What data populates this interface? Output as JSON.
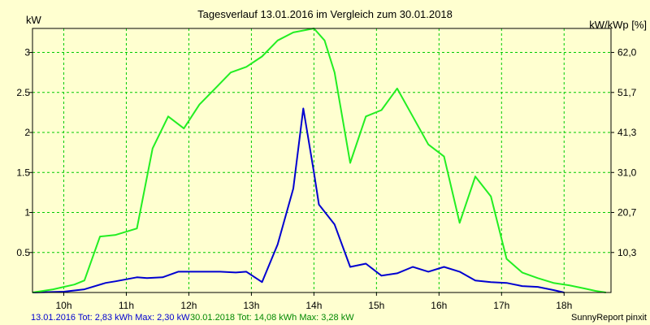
{
  "chart_data": {
    "type": "line",
    "title": "Tagesverlauf 13.01.2016 im Vergleich zum 30.01.2018",
    "ylabel_left": "kW",
    "ylabel_right": "kW/kWp [%]",
    "ylim": [
      0,
      3.3
    ],
    "y_right_ticks": [
      "10,3",
      "20,7",
      "31,0",
      "41,3",
      "51,7",
      "62,0"
    ],
    "y_right_tick_values": [
      0.5,
      1.0,
      1.5,
      2.0,
      2.5,
      3.0
    ],
    "y_ticks": [
      "0.5",
      "1",
      "1.5",
      "2",
      "2.5",
      "3"
    ],
    "y_tick_values": [
      0.5,
      1.0,
      1.5,
      2.0,
      2.5,
      3.0
    ],
    "xlim": [
      9.5,
      18.75
    ],
    "x_ticks": [
      "10h",
      "11h",
      "12h",
      "13h",
      "14h",
      "15h",
      "16h",
      "17h",
      "18h"
    ],
    "x_tick_values": [
      10,
      11,
      12,
      13,
      14,
      15,
      16,
      17,
      18
    ],
    "grid": true,
    "series": [
      {
        "name": "13.01.2016",
        "color": "#0000d0",
        "x": [
          9.5,
          10.0,
          10.33,
          10.67,
          10.83,
          11.17,
          11.33,
          11.58,
          11.83,
          12.0,
          12.17,
          12.5,
          12.75,
          12.92,
          13.17,
          13.42,
          13.67,
          13.83,
          14.0,
          14.08,
          14.33,
          14.58,
          14.83,
          15.08,
          15.33,
          15.58,
          15.83,
          16.08,
          16.33,
          16.58,
          16.83,
          17.08,
          17.33,
          17.58,
          17.83,
          18.0
        ],
        "values": [
          0.0,
          0.01,
          0.04,
          0.12,
          0.14,
          0.19,
          0.18,
          0.19,
          0.26,
          0.26,
          0.26,
          0.26,
          0.25,
          0.26,
          0.13,
          0.6,
          1.3,
          2.3,
          1.5,
          1.1,
          0.85,
          0.32,
          0.36,
          0.21,
          0.24,
          0.32,
          0.26,
          0.32,
          0.26,
          0.15,
          0.13,
          0.12,
          0.08,
          0.07,
          0.03,
          0.0
        ]
      },
      {
        "name": "30.01.2018",
        "color": "#22ee22",
        "x": [
          9.5,
          9.83,
          10.0,
          10.17,
          10.33,
          10.58,
          10.83,
          11.17,
          11.42,
          11.67,
          11.92,
          12.17,
          12.42,
          12.67,
          12.92,
          13.17,
          13.42,
          13.67,
          14.0,
          14.17,
          14.33,
          14.58,
          14.83,
          15.08,
          15.33,
          15.58,
          15.83,
          16.08,
          16.33,
          16.58,
          16.83,
          17.08,
          17.33,
          17.58,
          17.83,
          18.08,
          18.33,
          18.5,
          18.67
        ],
        "values": [
          0.0,
          0.04,
          0.07,
          0.1,
          0.15,
          0.7,
          0.72,
          0.8,
          1.8,
          2.2,
          2.05,
          2.35,
          2.55,
          2.75,
          2.82,
          2.95,
          3.15,
          3.25,
          3.3,
          3.15,
          2.75,
          1.62,
          2.2,
          2.28,
          2.55,
          2.2,
          1.85,
          1.7,
          0.87,
          1.45,
          1.2,
          0.42,
          0.25,
          0.18,
          0.12,
          0.09,
          0.05,
          0.02,
          0.0
        ]
      }
    ]
  },
  "footer": {
    "legend1": "13.01.2016 Tot: 2,83 kWh Max: 2,30 kW",
    "legend2": "30.01.2018 Tot: 14,08 kWh Max: 3,28 kW",
    "credit": "SunnyReport pinxit",
    "legend1_color": "#0000d0",
    "legend2_color": "#008800"
  }
}
